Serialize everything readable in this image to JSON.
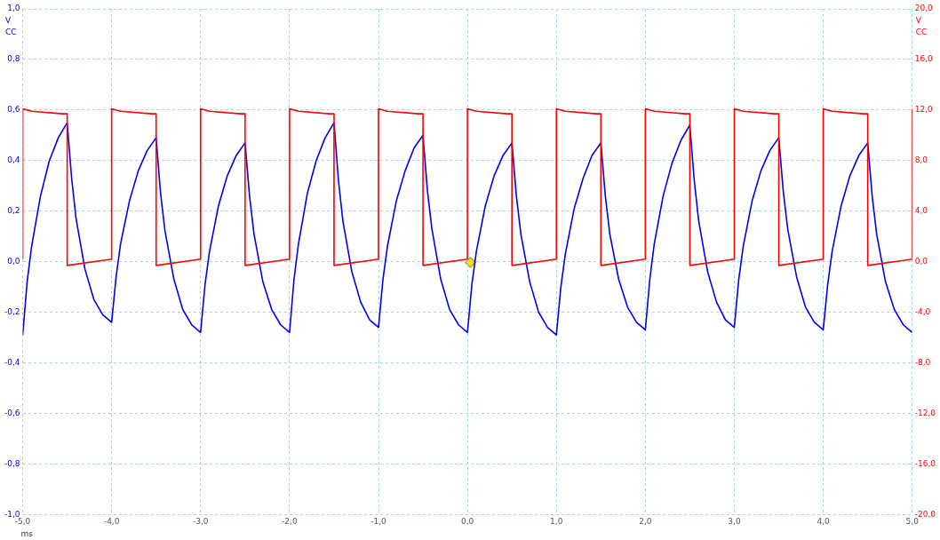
{
  "chart_data": {
    "type": "line",
    "xlabel": "ms",
    "ylabel": "V CC",
    "y2label": "V CC",
    "grid": true,
    "legend": false,
    "xlim": [
      -5,
      5
    ],
    "xticks": [
      {
        "value": -5,
        "label": "-5,0"
      },
      {
        "value": -4,
        "label": "-4,0"
      },
      {
        "value": -3,
        "label": "-3,0"
      },
      {
        "value": -2,
        "label": "-2,0"
      },
      {
        "value": -1,
        "label": "-1,0"
      },
      {
        "value": 0,
        "label": "0,0"
      },
      {
        "value": 1,
        "label": "1,0"
      },
      {
        "value": 2,
        "label": "2,0"
      },
      {
        "value": 3,
        "label": "3,0"
      },
      {
        "value": 4,
        "label": "4,0"
      },
      {
        "value": 5,
        "label": "5,0"
      }
    ],
    "ylim": [
      -1,
      1
    ],
    "yticks": [
      {
        "value": -1,
        "label": "-1,0"
      },
      {
        "value": -0.8,
        "label": "-0,8"
      },
      {
        "value": -0.6,
        "label": "-0,6"
      },
      {
        "value": -0.4,
        "label": "-0,4"
      },
      {
        "value": -0.2,
        "label": "-0,2"
      },
      {
        "value": 0,
        "label": "0,0"
      },
      {
        "value": 0.2,
        "label": "0,2"
      },
      {
        "value": 0.4,
        "label": "0,4"
      },
      {
        "value": 0.6,
        "label": "0,6"
      },
      {
        "value": 0.8,
        "label": "0,8"
      },
      {
        "value": 1,
        "label": "1,0"
      }
    ],
    "y2lim": [
      -20,
      20
    ],
    "y2ticks": [
      {
        "value": -20,
        "label": "-20,0"
      },
      {
        "value": -16,
        "label": "-16,0"
      },
      {
        "value": -12,
        "label": "-12,0"
      },
      {
        "value": -8,
        "label": "-8,0"
      },
      {
        "value": -4,
        "label": "-4,0"
      },
      {
        "value": 0,
        "label": "0,0"
      },
      {
        "value": 4,
        "label": "4,0"
      },
      {
        "value": 8,
        "label": "8,0"
      },
      {
        "value": 12,
        "label": "12,0"
      },
      {
        "value": 16,
        "label": "16,0"
      },
      {
        "value": 20,
        "label": "20,0"
      }
    ],
    "series": [
      {
        "axis": "y2",
        "color": "#ff0000",
        "x": [
          -5,
          -5,
          -4.9,
          -4.55,
          -4.5,
          -4.5,
          -4.1,
          -4,
          -4,
          -3.9,
          -3.55,
          -3.5,
          -3.5,
          -3.1,
          -3,
          -3,
          -2.9,
          -2.55,
          -2.5,
          -2.5,
          -2.1,
          -2,
          -2,
          -1.9,
          -1.55,
          -1.5,
          -1.5,
          -1.1,
          -1,
          -1,
          -0.9,
          -0.55,
          -0.5,
          -0.5,
          -0.1,
          0,
          0,
          0.1,
          0.45,
          0.5,
          0.5,
          0.9,
          1,
          1,
          1.1,
          1.45,
          1.5,
          1.5,
          1.9,
          2,
          2,
          2.1,
          2.45,
          2.5,
          2.5,
          2.9,
          3,
          3,
          3.1,
          3.45,
          3.5,
          3.5,
          3.9,
          4,
          4,
          4.1,
          4.45,
          4.5,
          4.5,
          4.9,
          5,
          5
        ],
        "values": [
          0.2,
          12.1,
          11.9,
          11.7,
          11.7,
          -0.3,
          0.1,
          0.2,
          12.1,
          11.9,
          11.7,
          11.7,
          -0.3,
          0.1,
          0.2,
          12.1,
          11.9,
          11.7,
          11.7,
          -0.3,
          0.1,
          0.2,
          12.1,
          11.9,
          11.7,
          11.7,
          -0.3,
          0.1,
          0.2,
          12.1,
          11.9,
          11.7,
          11.7,
          -0.3,
          0.1,
          0.2,
          12.1,
          11.9,
          11.7,
          11.7,
          -0.3,
          0.1,
          0.2,
          12.1,
          11.9,
          11.7,
          11.7,
          -0.3,
          0.1,
          0.2,
          12.1,
          11.9,
          11.7,
          11.7,
          -0.3,
          0.1,
          0.2,
          12.1,
          11.9,
          11.7,
          11.7,
          -0.3,
          0.1,
          0.2,
          12.1,
          11.9,
          11.7,
          11.7,
          -0.3,
          0.1,
          0.2,
          12.1
        ]
      },
      {
        "axis": "y",
        "color": "#0000ee",
        "x": [
          -5,
          -4.95,
          -4.9,
          -4.8,
          -4.7,
          -4.6,
          -4.5,
          -4.45,
          -4.4,
          -4.3,
          -4.2,
          -4.1,
          -4,
          -3.95,
          -3.9,
          -3.8,
          -3.7,
          -3.6,
          -3.5,
          -3.45,
          -3.4,
          -3.3,
          -3.2,
          -3.1,
          -3,
          -2.95,
          -2.9,
          -2.8,
          -2.7,
          -2.6,
          -2.5,
          -2.45,
          -2.4,
          -2.3,
          -2.2,
          -2.1,
          -2,
          -1.95,
          -1.9,
          -1.8,
          -1.7,
          -1.6,
          -1.5,
          -1.45,
          -1.4,
          -1.3,
          -1.2,
          -1.1,
          -1,
          -0.95,
          -0.9,
          -0.8,
          -0.7,
          -0.6,
          -0.5,
          -0.45,
          -0.4,
          -0.3,
          -0.2,
          -0.1,
          0,
          0.05,
          0.1,
          0.2,
          0.3,
          0.4,
          0.5,
          0.55,
          0.6,
          0.7,
          0.8,
          0.9,
          1,
          1.05,
          1.1,
          1.2,
          1.3,
          1.4,
          1.5,
          1.55,
          1.6,
          1.7,
          1.8,
          1.9,
          2,
          2.05,
          2.1,
          2.2,
          2.3,
          2.4,
          2.5,
          2.55,
          2.6,
          2.7,
          2.8,
          2.9,
          3,
          3.05,
          3.1,
          3.2,
          3.3,
          3.4,
          3.5,
          3.55,
          3.6,
          3.7,
          3.8,
          3.9,
          4,
          4.05,
          4.1,
          4.2,
          4.3,
          4.4,
          4.5,
          4.55,
          4.6,
          4.7,
          4.8,
          4.9,
          5
        ],
        "values": [
          -0.29,
          -0.08,
          0.06,
          0.26,
          0.4,
          0.49,
          0.55,
          0.33,
          0.17,
          -0.03,
          -0.15,
          -0.21,
          -0.24,
          -0.06,
          0.07,
          0.24,
          0.36,
          0.44,
          0.49,
          0.27,
          0.12,
          -0.07,
          -0.19,
          -0.25,
          -0.28,
          -0.09,
          0.04,
          0.22,
          0.34,
          0.42,
          0.47,
          0.26,
          0.11,
          -0.08,
          -0.19,
          -0.25,
          -0.28,
          -0.07,
          0.07,
          0.27,
          0.4,
          0.49,
          0.55,
          0.32,
          0.16,
          -0.04,
          -0.16,
          -0.23,
          -0.26,
          -0.07,
          0.06,
          0.24,
          0.36,
          0.45,
          0.5,
          0.28,
          0.13,
          -0.07,
          -0.19,
          -0.25,
          -0.28,
          -0.09,
          0.04,
          0.22,
          0.34,
          0.42,
          0.47,
          0.26,
          0.11,
          -0.08,
          -0.2,
          -0.26,
          -0.29,
          -0.1,
          0.03,
          0.21,
          0.33,
          0.42,
          0.47,
          0.26,
          0.11,
          -0.07,
          -0.18,
          -0.24,
          -0.27,
          -0.07,
          0.07,
          0.26,
          0.39,
          0.48,
          0.54,
          0.32,
          0.16,
          -0.04,
          -0.16,
          -0.23,
          -0.26,
          -0.07,
          0.06,
          0.24,
          0.36,
          0.44,
          0.49,
          0.28,
          0.13,
          -0.06,
          -0.18,
          -0.24,
          -0.27,
          -0.09,
          0.04,
          0.22,
          0.34,
          0.42,
          0.47,
          0.26,
          0.11,
          -0.08,
          -0.19,
          -0.25,
          -0.28
        ]
      }
    ]
  }
}
